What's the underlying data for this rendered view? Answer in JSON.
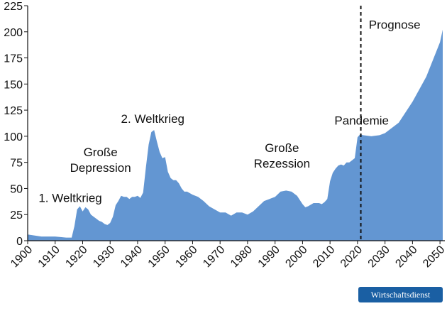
{
  "chart_data": {
    "type": "area",
    "title": "",
    "xlabel": "",
    "ylabel": "",
    "xlim": [
      1900,
      2051
    ],
    "ylim": [
      0,
      225
    ],
    "x_ticks": [
      1900,
      1910,
      1920,
      1930,
      1940,
      1950,
      1960,
      1970,
      1980,
      1990,
      2000,
      2010,
      2020,
      2030,
      2040,
      2050
    ],
    "y_ticks": [
      0,
      25,
      50,
      75,
      100,
      125,
      150,
      175,
      200,
      225
    ],
    "grid": false,
    "fill_color": "#6396d2",
    "divider": {
      "x": 2021.2,
      "style": "dashed"
    },
    "series": [
      {
        "x": [
          1900,
          1905,
          1910,
          1914,
          1916,
          1917,
          1918,
          1919,
          1920,
          1921,
          1922,
          1923,
          1924,
          1925,
          1926,
          1927,
          1928,
          1929,
          1930,
          1931,
          1932,
          1933,
          1934,
          1935,
          1936,
          1937,
          1938,
          1939,
          1940,
          1941,
          1942,
          1943,
          1944,
          1945,
          1946,
          1947,
          1948,
          1949,
          1950,
          1951,
          1952,
          1953,
          1954,
          1955,
          1956,
          1957,
          1958,
          1960,
          1962,
          1964,
          1966,
          1968,
          1970,
          1972,
          1974,
          1976,
          1978,
          1980,
          1982,
          1984,
          1986,
          1988,
          1990,
          1992,
          1994,
          1996,
          1998,
          2000,
          2001,
          2002,
          2004,
          2006,
          2007,
          2008,
          2009,
          2010,
          2011,
          2012,
          2013,
          2014,
          2015,
          2016,
          2017,
          2018,
          2019,
          2020,
          2021,
          2022,
          2025,
          2028,
          2030,
          2035,
          2040,
          2045,
          2050,
          2051
        ],
        "values": [
          6,
          4,
          4,
          3,
          3,
          14,
          30,
          33,
          28,
          32,
          30,
          25,
          23,
          21,
          19,
          18,
          16,
          15,
          17,
          23,
          34,
          38,
          43,
          42,
          42,
          40,
          42,
          42,
          43,
          41,
          46,
          70,
          92,
          104,
          106,
          95,
          85,
          79,
          80,
          66,
          60,
          58,
          58,
          55,
          50,
          47,
          47,
          44,
          42,
          38,
          33,
          30,
          27,
          27,
          24,
          27,
          27,
          25,
          28,
          33,
          38,
          40,
          42,
          47,
          48,
          47,
          43,
          35,
          32,
          33,
          36,
          36,
          35,
          37,
          40,
          57,
          65,
          69,
          72,
          73,
          72,
          75,
          75,
          77,
          79,
          99,
          102,
          101,
          100,
          101,
          103,
          113,
          133,
          157,
          190,
          202
        ]
      }
    ],
    "annotations": [
      {
        "text": "1. Weltkrieg",
        "x": 1915.5,
        "y": 37
      },
      {
        "text": "Große",
        "x": 1926.5,
        "y": 81
      },
      {
        "text": "Depression",
        "x": 1926.5,
        "y": 66
      },
      {
        "text": "2. Weltkrieg",
        "x": 1945.5,
        "y": 113
      },
      {
        "text": "Große",
        "x": 1992.5,
        "y": 85
      },
      {
        "text": "Rezession",
        "x": 1992.5,
        "y": 70
      },
      {
        "text": "Pandemie",
        "x": 2021.5,
        "y": 111
      },
      {
        "text": "Prognose",
        "x": 2033.5,
        "y": 203
      }
    ]
  },
  "badge": {
    "label": "Wirtschaftsdienst"
  }
}
